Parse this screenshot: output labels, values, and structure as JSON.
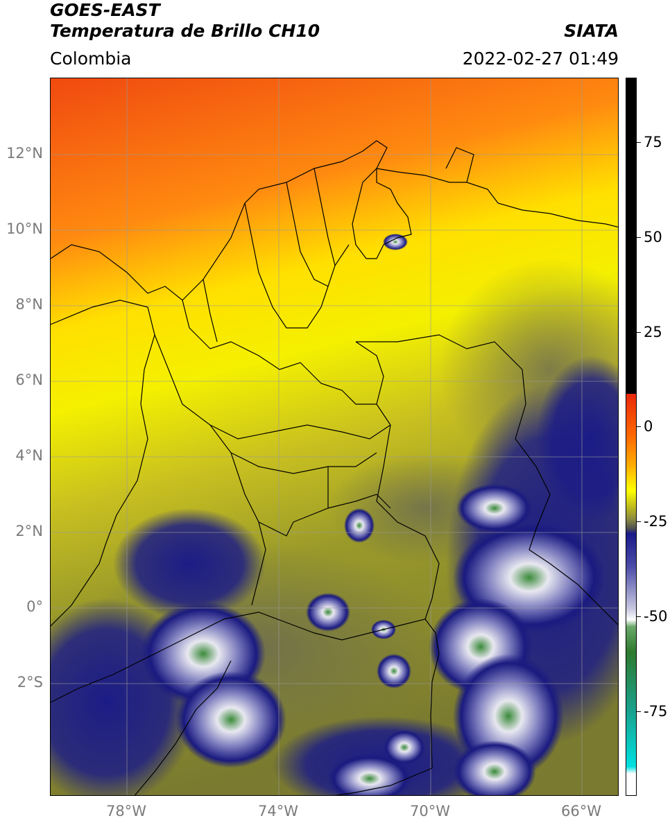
{
  "header": {
    "satellite": "GOES-EAST",
    "product": "Temperatura de Brillo CH10",
    "region": "Colombia",
    "agency": "SIATA",
    "datetime": "2022-02-27 01:49"
  },
  "map": {
    "lat_labels": [
      "12°N",
      "10°N",
      "8°N",
      "6°N",
      "4°N",
      "2°N",
      "0°",
      "2°S"
    ],
    "lon_labels": [
      "78°W",
      "74°W",
      "70°W",
      "66°W"
    ]
  },
  "colorbar": {
    "ticks": [
      "75",
      "50",
      "25",
      "0",
      "-25",
      "-50",
      "-75"
    ],
    "colors": {
      "black": "#000000",
      "red": "#e8320a",
      "orange": "#ff8c00",
      "yellow": "#ffff00",
      "olive": "#9a9a30",
      "gray": "#6e6e5a",
      "navy": "#1a1a8a",
      "white": "#ffffff",
      "green": "#2e8b2e",
      "cyan": "#00e0e0"
    }
  }
}
